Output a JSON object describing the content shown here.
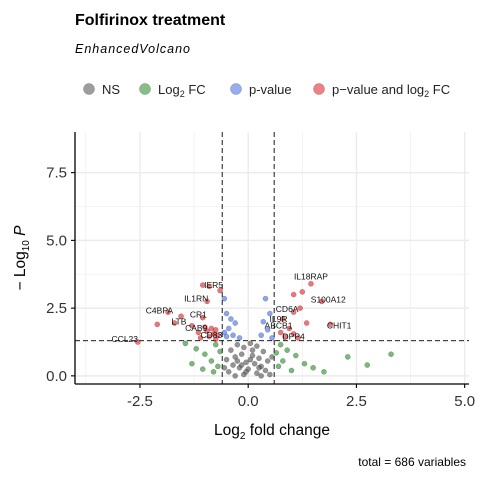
{
  "chart_data": {
    "type": "scatter",
    "title": "Folfirinox treatment",
    "subtitle": "EnhancedVolcano",
    "xlabel": "Log2 fold change",
    "ylabel": "−Log10 P",
    "caption": "total = 686 variables",
    "xlim": [
      -4,
      5.1
    ],
    "ylim": [
      -0.3,
      9
    ],
    "xticks": [
      "-2.5",
      "0.0",
      "2.5",
      "5.0"
    ],
    "yticks": [
      "0.0",
      "2.5",
      "5.0",
      "7.5"
    ],
    "fc_cutoff": 0.6,
    "p_cutoff_log10": 1.3,
    "grid": true,
    "legend_position": "top",
    "legend": [
      {
        "key": "NS",
        "label": "NS",
        "color": "#4d4d4d"
      },
      {
        "key": "FC",
        "label": "Log2 FC",
        "color": "#228b22"
      },
      {
        "key": "P",
        "label": "p-value",
        "color": "#4169e1"
      },
      {
        "key": "FCP",
        "label": "p−value and log2 FC",
        "color": "#e41a1c"
      }
    ],
    "colors": {
      "NS": "#4d4d4d",
      "FC": "#228b22",
      "P": "#4169e1",
      "FCP": "#e41a1c"
    },
    "points": [
      {
        "x": -1.05,
        "y": 3.35,
        "c": "FCP"
      },
      {
        "x": -0.9,
        "y": 3.3,
        "c": "FCP"
      },
      {
        "x": -0.65,
        "y": 3.15,
        "c": "FCP"
      },
      {
        "x": -0.95,
        "y": 2.75,
        "c": "FCP"
      },
      {
        "x": -1.85,
        "y": 2.35,
        "c": "FCP"
      },
      {
        "x": -1.55,
        "y": 2.2,
        "c": "FCP"
      },
      {
        "x": -1.05,
        "y": 2.15,
        "c": "FCP"
      },
      {
        "x": -1.7,
        "y": 1.95,
        "c": "FCP"
      },
      {
        "x": -2.1,
        "y": 1.9,
        "c": "FCP"
      },
      {
        "x": -1.3,
        "y": 1.85,
        "c": "FCP"
      },
      {
        "x": -1.0,
        "y": 1.8,
        "c": "FCP"
      },
      {
        "x": -0.85,
        "y": 1.75,
        "c": "FCP"
      },
      {
        "x": -0.75,
        "y": 1.7,
        "c": "FCP"
      },
      {
        "x": -0.95,
        "y": 1.65,
        "c": "FCP"
      },
      {
        "x": -1.15,
        "y": 1.6,
        "c": "FCP"
      },
      {
        "x": -0.8,
        "y": 1.55,
        "c": "FCP"
      },
      {
        "x": -0.7,
        "y": 1.5,
        "c": "FCP"
      },
      {
        "x": -0.9,
        "y": 1.45,
        "c": "FCP"
      },
      {
        "x": -1.1,
        "y": 1.4,
        "c": "FCP"
      },
      {
        "x": -2.55,
        "y": 1.25,
        "c": "FCP"
      },
      {
        "x": -0.75,
        "y": 1.35,
        "c": "FCP"
      },
      {
        "x": 1.05,
        "y": 3.0,
        "c": "FCP"
      },
      {
        "x": 1.25,
        "y": 3.1,
        "c": "FCP"
      },
      {
        "x": 1.45,
        "y": 3.4,
        "c": "FCP"
      },
      {
        "x": 1.7,
        "y": 2.75,
        "c": "FCP"
      },
      {
        "x": 1.2,
        "y": 2.5,
        "c": "FCP"
      },
      {
        "x": 1.05,
        "y": 2.35,
        "c": "FCP"
      },
      {
        "x": 0.8,
        "y": 2.1,
        "c": "FCP"
      },
      {
        "x": 1.35,
        "y": 1.95,
        "c": "FCP"
      },
      {
        "x": 1.9,
        "y": 1.9,
        "c": "FCP"
      },
      {
        "x": 0.95,
        "y": 1.75,
        "c": "FCP"
      },
      {
        "x": 0.75,
        "y": 1.6,
        "c": "FCP"
      },
      {
        "x": 1.05,
        "y": 1.55,
        "c": "FCP"
      },
      {
        "x": 0.85,
        "y": 1.45,
        "c": "FCP"
      },
      {
        "x": 1.15,
        "y": 1.4,
        "c": "FCP"
      },
      {
        "x": -0.55,
        "y": 2.85,
        "c": "P"
      },
      {
        "x": -0.5,
        "y": 2.3,
        "c": "P"
      },
      {
        "x": -0.4,
        "y": 2.1,
        "c": "P"
      },
      {
        "x": -0.3,
        "y": 1.95,
        "c": "P"
      },
      {
        "x": -0.45,
        "y": 1.75,
        "c": "P"
      },
      {
        "x": -0.55,
        "y": 1.6,
        "c": "P"
      },
      {
        "x": -0.35,
        "y": 1.5,
        "c": "P"
      },
      {
        "x": -0.5,
        "y": 1.45,
        "c": "P"
      },
      {
        "x": -0.2,
        "y": 1.4,
        "c": "P"
      },
      {
        "x": 0.4,
        "y": 2.85,
        "c": "P"
      },
      {
        "x": 0.5,
        "y": 2.3,
        "c": "P"
      },
      {
        "x": 0.35,
        "y": 2.0,
        "c": "P"
      },
      {
        "x": 0.45,
        "y": 1.7,
        "c": "P"
      },
      {
        "x": 0.3,
        "y": 1.5,
        "c": "P"
      },
      {
        "x": 0.55,
        "y": 1.4,
        "c": "P"
      },
      {
        "x": -1.45,
        "y": 1.2,
        "c": "FC"
      },
      {
        "x": -1.2,
        "y": 1.0,
        "c": "FC"
      },
      {
        "x": -1.0,
        "y": 0.8,
        "c": "FC"
      },
      {
        "x": -0.85,
        "y": 0.55,
        "c": "FC"
      },
      {
        "x": -1.3,
        "y": 0.45,
        "c": "FC"
      },
      {
        "x": -0.7,
        "y": 0.35,
        "c": "FC"
      },
      {
        "x": -1.05,
        "y": 0.25,
        "c": "FC"
      },
      {
        "x": -0.8,
        "y": 0.15,
        "c": "FC"
      },
      {
        "x": -0.65,
        "y": 0.9,
        "c": "FC"
      },
      {
        "x": -0.75,
        "y": 1.15,
        "c": "FC"
      },
      {
        "x": 0.75,
        "y": 1.15,
        "c": "FC"
      },
      {
        "x": 0.9,
        "y": 0.95,
        "c": "FC"
      },
      {
        "x": 1.1,
        "y": 0.75,
        "c": "FC"
      },
      {
        "x": 0.8,
        "y": 0.55,
        "c": "FC"
      },
      {
        "x": 1.3,
        "y": 0.45,
        "c": "FC"
      },
      {
        "x": 0.7,
        "y": 0.35,
        "c": "FC"
      },
      {
        "x": 1.0,
        "y": 0.2,
        "c": "FC"
      },
      {
        "x": 1.5,
        "y": 0.3,
        "c": "FC"
      },
      {
        "x": 1.75,
        "y": 0.15,
        "c": "FC"
      },
      {
        "x": 2.3,
        "y": 0.7,
        "c": "FC"
      },
      {
        "x": 2.75,
        "y": 0.4,
        "c": "FC"
      },
      {
        "x": 3.3,
        "y": 0.8,
        "c": "FC"
      },
      {
        "x": 0.65,
        "y": 0.85,
        "c": "FC"
      },
      {
        "x": -0.25,
        "y": 1.15,
        "c": "NS"
      },
      {
        "x": -0.1,
        "y": 1.05,
        "c": "NS"
      },
      {
        "x": 0.05,
        "y": 1.2,
        "c": "NS"
      },
      {
        "x": 0.2,
        "y": 1.1,
        "c": "NS"
      },
      {
        "x": -0.4,
        "y": 0.95,
        "c": "NS"
      },
      {
        "x": 0.35,
        "y": 0.9,
        "c": "NS"
      },
      {
        "x": -0.15,
        "y": 0.8,
        "c": "NS"
      },
      {
        "x": 0.1,
        "y": 0.75,
        "c": "NS"
      },
      {
        "x": -0.3,
        "y": 0.7,
        "c": "NS"
      },
      {
        "x": 0.25,
        "y": 0.65,
        "c": "NS"
      },
      {
        "x": -0.5,
        "y": 0.6,
        "c": "NS"
      },
      {
        "x": 0.45,
        "y": 0.55,
        "c": "NS"
      },
      {
        "x": -0.05,
        "y": 0.5,
        "c": "NS"
      },
      {
        "x": 0.15,
        "y": 0.45,
        "c": "NS"
      },
      {
        "x": -0.35,
        "y": 0.4,
        "c": "NS"
      },
      {
        "x": 0.3,
        "y": 0.35,
        "c": "NS"
      },
      {
        "x": -0.2,
        "y": 0.3,
        "c": "NS"
      },
      {
        "x": 0.0,
        "y": 0.25,
        "c": "NS"
      },
      {
        "x": 0.4,
        "y": 0.2,
        "c": "NS"
      },
      {
        "x": -0.45,
        "y": 0.15,
        "c": "NS"
      },
      {
        "x": 0.2,
        "y": 0.1,
        "c": "NS"
      },
      {
        "x": -0.1,
        "y": 0.05,
        "c": "NS"
      },
      {
        "x": 0.5,
        "y": 0.05,
        "c": "NS"
      },
      {
        "x": -0.55,
        "y": 0.3,
        "c": "NS"
      },
      {
        "x": 0.55,
        "y": 0.7,
        "c": "NS"
      },
      {
        "x": -0.25,
        "y": 0.55,
        "c": "NS"
      },
      {
        "x": 0.1,
        "y": 0.95,
        "c": "NS"
      },
      {
        "x": -0.05,
        "y": 0.15,
        "c": "NS"
      },
      {
        "x": 0.3,
        "y": 0.0,
        "c": "NS"
      },
      {
        "x": -0.3,
        "y": 0.0,
        "c": "NS"
      },
      {
        "x": 0.05,
        "y": 0.6,
        "c": "NS"
      },
      {
        "x": -0.15,
        "y": 0.4,
        "c": "NS"
      },
      {
        "x": 0.25,
        "y": 0.3,
        "c": "NS"
      }
    ],
    "labels": [
      {
        "text": "IER5",
        "x": -0.8,
        "y": 3.25
      },
      {
        "text": "IL18RAP",
        "x": 1.45,
        "y": 3.55
      },
      {
        "text": "IL1RN",
        "x": -1.2,
        "y": 2.75
      },
      {
        "text": "S100A12",
        "x": 1.85,
        "y": 2.7
      },
      {
        "text": "C4BPA",
        "x": -2.05,
        "y": 2.3
      },
      {
        "text": "CR1",
        "x": -1.15,
        "y": 2.15
      },
      {
        "text": "CD6A",
        "x": 0.9,
        "y": 2.35
      },
      {
        "text": "IL9R",
        "x": 0.7,
        "y": 1.98
      },
      {
        "text": "LTB",
        "x": -1.6,
        "y": 1.9
      },
      {
        "text": "CAB9",
        "x": -1.2,
        "y": 1.65
      },
      {
        "text": "ABCB1",
        "x": 0.7,
        "y": 1.75
      },
      {
        "text": "CHIT1",
        "x": 2.1,
        "y": 1.75
      },
      {
        "text": "CD83",
        "x": -0.85,
        "y": 1.4
      },
      {
        "text": "CCL23",
        "x": -2.85,
        "y": 1.25
      },
      {
        "text": "DPP4",
        "x": 1.05,
        "y": 1.35
      }
    ]
  }
}
